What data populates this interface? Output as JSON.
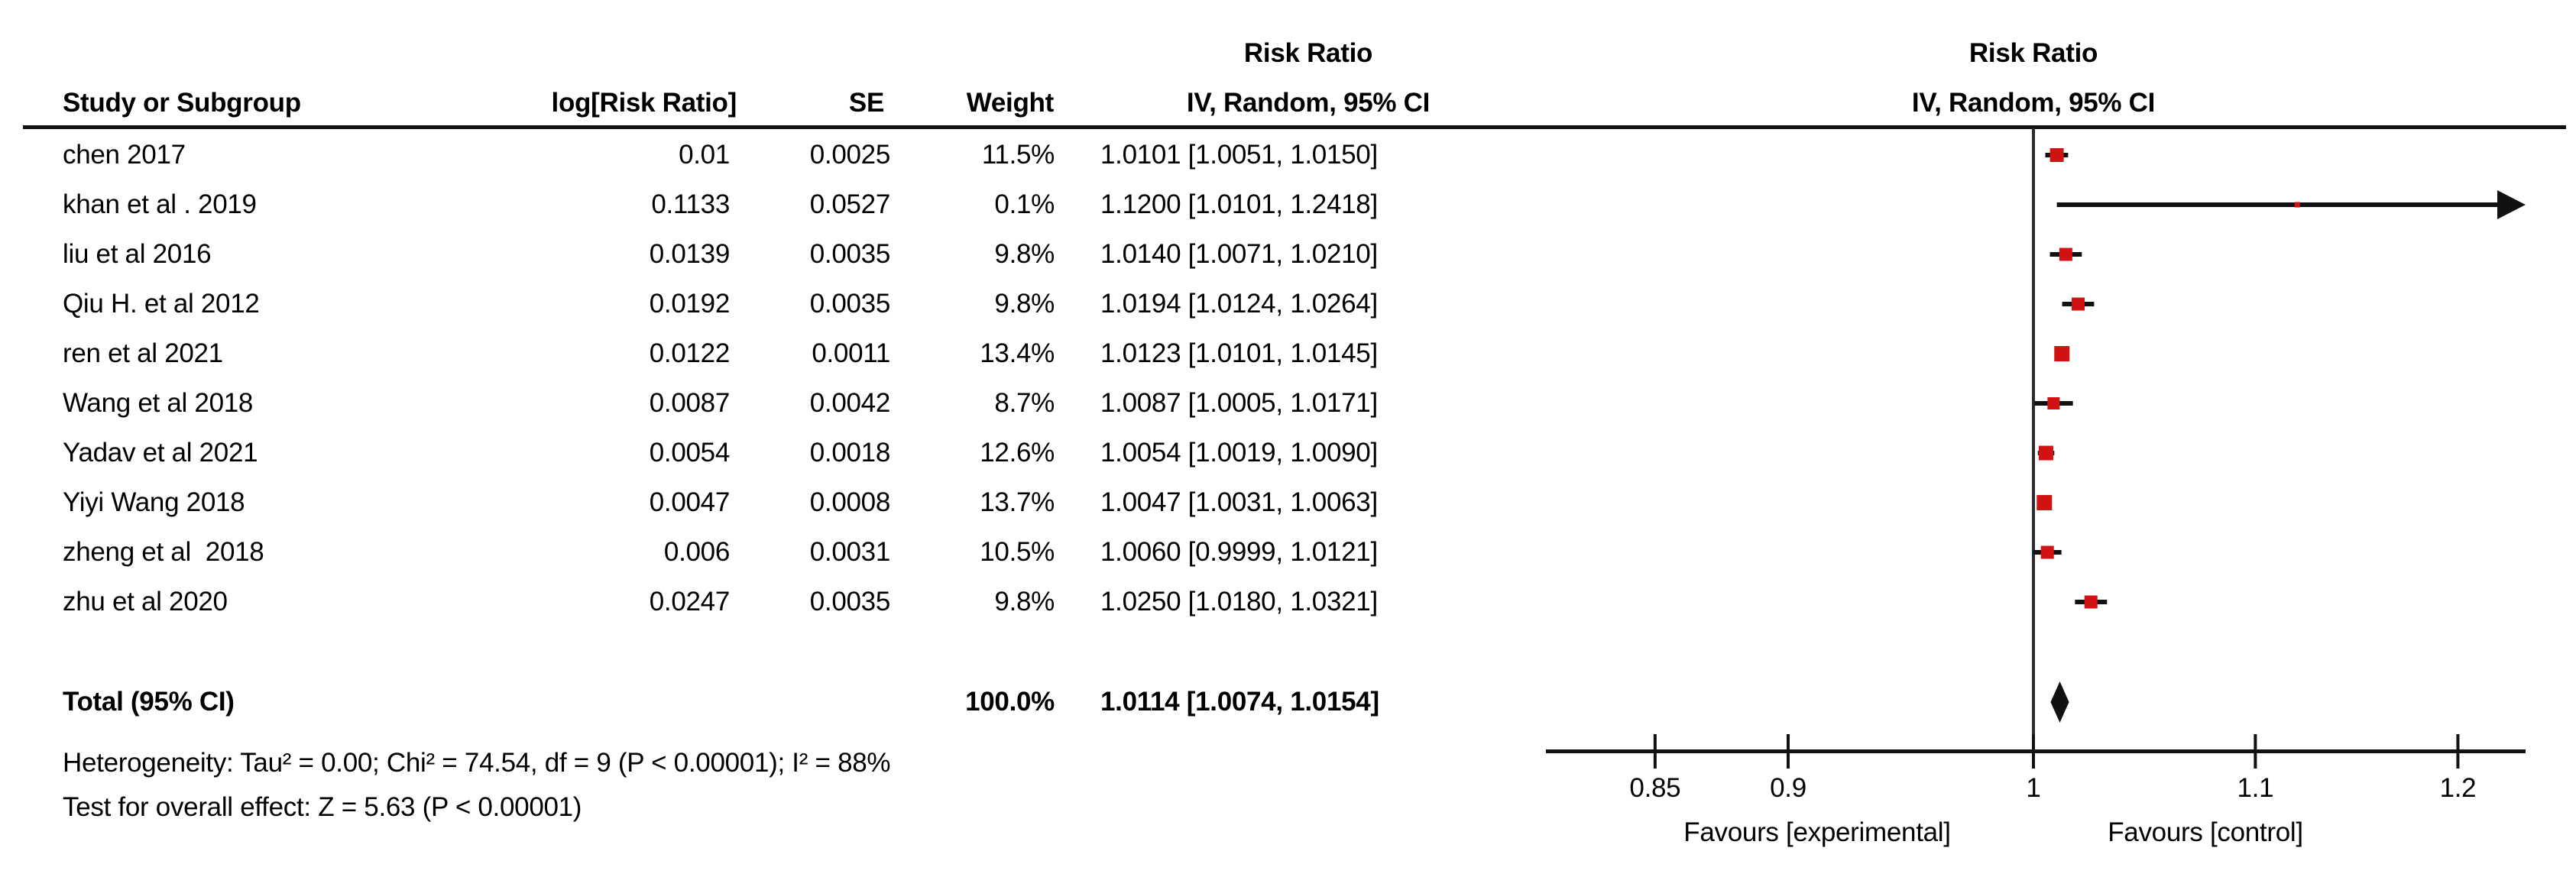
{
  "table": {
    "headers": {
      "study": "Study or Subgroup",
      "log_rr": "log[Risk Ratio]",
      "se": "SE",
      "weight": "Weight",
      "rr_line1": "Risk Ratio",
      "rr_line2": "IV, Random, 95% CI",
      "plot_line1": "Risk Ratio",
      "plot_line2": "IV, Random, 95% CI"
    },
    "studies": [
      {
        "name": "chen 2017",
        "log_rr": "0.01",
        "se": "0.0025",
        "weight": "11.5%",
        "estimate": "1.0101 [1.0051, 1.0150]"
      },
      {
        "name": "khan et al . 2019",
        "log_rr": "0.1133",
        "se": "0.0527",
        "weight": "0.1%",
        "estimate": "1.1200 [1.0101, 1.2418]"
      },
      {
        "name": "liu et al 2016",
        "log_rr": "0.0139",
        "se": "0.0035",
        "weight": "9.8%",
        "estimate": "1.0140 [1.0071, 1.0210]"
      },
      {
        "name": "Qiu H. et al 2012",
        "log_rr": "0.0192",
        "se": "0.0035",
        "weight": "9.8%",
        "estimate": "1.0194 [1.0124, 1.0264]"
      },
      {
        "name": "ren et al 2021",
        "log_rr": "0.0122",
        "se": "0.0011",
        "weight": "13.4%",
        "estimate": "1.0123 [1.0101, 1.0145]"
      },
      {
        "name": "Wang et al 2018",
        "log_rr": "0.0087",
        "se": "0.0042",
        "weight": "8.7%",
        "estimate": "1.0087 [1.0005, 1.0171]"
      },
      {
        "name": "Yadav et al 2021",
        "log_rr": "0.0054",
        "se": "0.0018",
        "weight": "12.6%",
        "estimate": "1.0054 [1.0019, 1.0090]"
      },
      {
        "name": "Yiyi Wang 2018",
        "log_rr": "0.0047",
        "se": "0.0008",
        "weight": "13.7%",
        "estimate": "1.0047 [1.0031, 1.0063]"
      },
      {
        "name": "zheng et al  2018",
        "log_rr": "0.006",
        "se": "0.0031",
        "weight": "10.5%",
        "estimate": "1.0060 [0.9999, 1.0121]"
      },
      {
        "name": "zhu et al 2020",
        "log_rr": "0.0247",
        "se": "0.0035",
        "weight": "9.8%",
        "estimate": "1.0250 [1.0180, 1.0321]"
      }
    ],
    "total": {
      "label": "Total (95% CI)",
      "weight": "100.0%",
      "estimate": "1.0114 [1.0074, 1.0154]"
    },
    "heterogeneity": "Heterogeneity: Tau² = 0.00; Chi² = 74.54, df = 9 (P < 0.00001); I² = 88%",
    "overall_effect": "Test for overall effect: Z = 5.63 (P < 0.00001)"
  },
  "chart_data": {
    "type": "scatter",
    "subtype": "forest-plot",
    "scale": "log",
    "x_ticks": [
      0.85,
      0.9,
      1,
      1.1,
      1.2
    ],
    "x_range": [
      0.81,
      1.236
    ],
    "points": [
      {
        "study": "chen 2017",
        "rr": 1.0101,
        "ci_low": 1.0051,
        "ci_high": 1.015,
        "weight_pct": 11.5
      },
      {
        "study": "khan et al . 2019",
        "rr": 1.12,
        "ci_low": 1.0101,
        "ci_high": 1.2418,
        "weight_pct": 0.1
      },
      {
        "study": "liu et al 2016",
        "rr": 1.014,
        "ci_low": 1.0071,
        "ci_high": 1.021,
        "weight_pct": 9.8
      },
      {
        "study": "Qiu H. et al 2012",
        "rr": 1.0194,
        "ci_low": 1.0124,
        "ci_high": 1.0264,
        "weight_pct": 9.8
      },
      {
        "study": "ren et al 2021",
        "rr": 1.0123,
        "ci_low": 1.0101,
        "ci_high": 1.0145,
        "weight_pct": 13.4
      },
      {
        "study": "Wang et al 2018",
        "rr": 1.0087,
        "ci_low": 1.0005,
        "ci_high": 1.0171,
        "weight_pct": 8.7
      },
      {
        "study": "Yadav et al 2021",
        "rr": 1.0054,
        "ci_low": 1.0019,
        "ci_high": 1.009,
        "weight_pct": 12.6
      },
      {
        "study": "Yiyi Wang 2018",
        "rr": 1.0047,
        "ci_low": 1.0031,
        "ci_high": 1.0063,
        "weight_pct": 13.7
      },
      {
        "study": "zheng et al  2018",
        "rr": 1.006,
        "ci_low": 0.9999,
        "ci_high": 1.0121,
        "weight_pct": 10.5
      },
      {
        "study": "zhu et al 2020",
        "rr": 1.025,
        "ci_low": 1.018,
        "ci_high": 1.0321,
        "weight_pct": 9.8
      }
    ],
    "summary": {
      "label": "Total (95% CI)",
      "rr": 1.0114,
      "ci_low": 1.0074,
      "ci_high": 1.0154
    },
    "footer_left": "Favours [experimental]",
    "footer_right": "Favours [control]",
    "null_line_value": 1,
    "marker_color": "#D01212",
    "line_color": "#111111"
  }
}
